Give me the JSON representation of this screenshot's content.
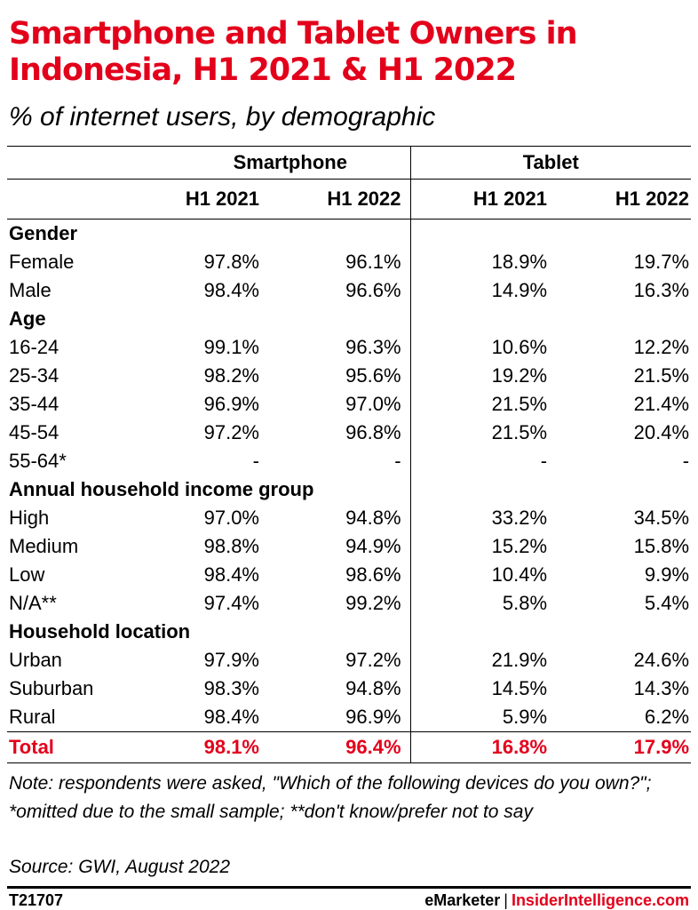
{
  "title": "Smartphone and Tablet Owners in Indonesia, H1 2021 & H1 2022",
  "subtitle": "% of internet users, by demographic",
  "chart_data": {
    "type": "table",
    "column_groups": [
      "Smartphone",
      "Tablet"
    ],
    "columns": [
      "H1 2021",
      "H1 2022",
      "H1 2021",
      "H1 2022"
    ],
    "groups": [
      {
        "name": "Gender",
        "rows": [
          {
            "label": "Female",
            "values": [
              "97.8%",
              "96.1%",
              "18.9%",
              "19.7%"
            ]
          },
          {
            "label": "Male",
            "values": [
              "98.4%",
              "96.6%",
              "14.9%",
              "16.3%"
            ]
          }
        ]
      },
      {
        "name": "Age",
        "rows": [
          {
            "label": "16-24",
            "values": [
              "99.1%",
              "96.3%",
              "10.6%",
              "12.2%"
            ]
          },
          {
            "label": "25-34",
            "values": [
              "98.2%",
              "95.6%",
              "19.2%",
              "21.5%"
            ]
          },
          {
            "label": "35-44",
            "values": [
              "96.9%",
              "97.0%",
              "21.5%",
              "21.4%"
            ]
          },
          {
            "label": "45-54",
            "values": [
              "97.2%",
              "96.8%",
              "21.5%",
              "20.4%"
            ]
          },
          {
            "label": "55-64*",
            "values": [
              "-",
              "-",
              "-",
              "-"
            ]
          }
        ]
      },
      {
        "name": "Annual household income group",
        "rows": [
          {
            "label": "High",
            "values": [
              "97.0%",
              "94.8%",
              "33.2%",
              "34.5%"
            ]
          },
          {
            "label": "Medium",
            "values": [
              "98.8%",
              "94.9%",
              "15.2%",
              "15.8%"
            ]
          },
          {
            "label": "Low",
            "values": [
              "98.4%",
              "98.6%",
              "10.4%",
              "9.9%"
            ]
          },
          {
            "label": "N/A**",
            "values": [
              "97.4%",
              "99.2%",
              "5.8%",
              "5.4%"
            ]
          }
        ]
      },
      {
        "name": "Household location",
        "rows": [
          {
            "label": "Urban",
            "values": [
              "97.9%",
              "97.2%",
              "21.9%",
              "24.6%"
            ]
          },
          {
            "label": "Suburban",
            "values": [
              "98.3%",
              "94.8%",
              "14.5%",
              "14.3%"
            ]
          },
          {
            "label": "Rural",
            "values": [
              "98.4%",
              "96.9%",
              "5.9%",
              "6.2%"
            ]
          }
        ]
      }
    ],
    "total": {
      "label": "Total",
      "values": [
        "98.1%",
        "96.4%",
        "16.8%",
        "17.9%"
      ]
    }
  },
  "note": "Note: respondents were asked, \"Which of the following devices do you own?\"; *omitted due to the small sample; **don't know/prefer not to say",
  "source": "Source: GWI, August 2022",
  "footer": {
    "code": "T21707",
    "brand1": "eMarketer",
    "divider": "|",
    "brand2": "InsiderIntelligence.com"
  },
  "colors": {
    "accent": "#e3001b",
    "text": "#000000",
    "background": "#ffffff"
  }
}
